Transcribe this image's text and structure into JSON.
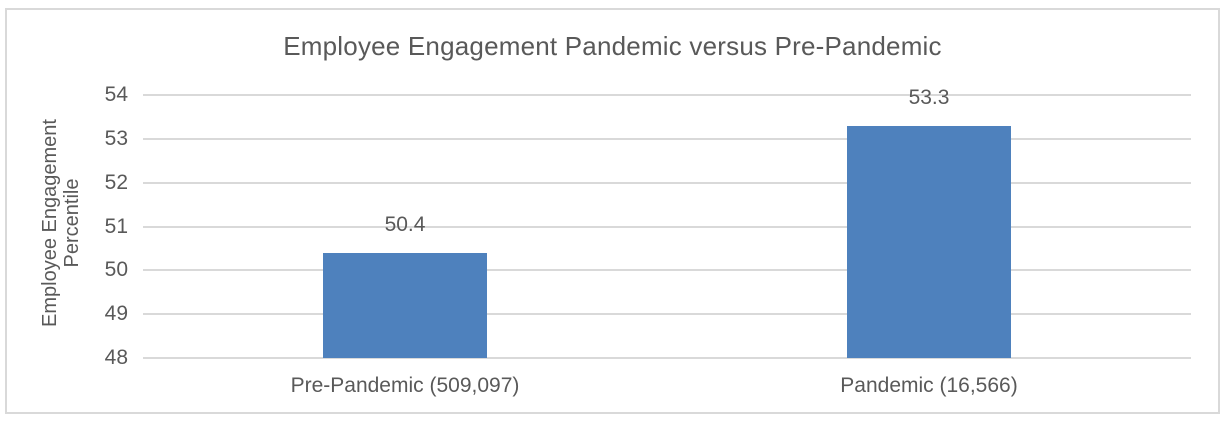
{
  "chart_data": {
    "type": "bar",
    "title": "Employee Engagement Pandemic versus Pre-Pandemic",
    "ylabel": "Employee Engagement Percentile",
    "ylabel_lines": [
      "Employee Engagement",
      "Percentile"
    ],
    "xlabel": "",
    "categories": [
      "Pre-Pandemic (509,097)",
      "Pandemic (16,566)"
    ],
    "values": [
      50.4,
      53.3
    ],
    "data_labels": [
      "50.4",
      "53.3"
    ],
    "ylim": [
      48,
      54
    ],
    "yticks": [
      "48",
      "49",
      "50",
      "51",
      "52",
      "53",
      "54"
    ],
    "grid": "horizontal-major",
    "legend": "none",
    "colors": {
      "bar": "#4E81BD",
      "text": "#595959",
      "gridline": "#D9D9D9",
      "border": "#D9D9D9",
      "background": "#FFFFFF"
    }
  }
}
